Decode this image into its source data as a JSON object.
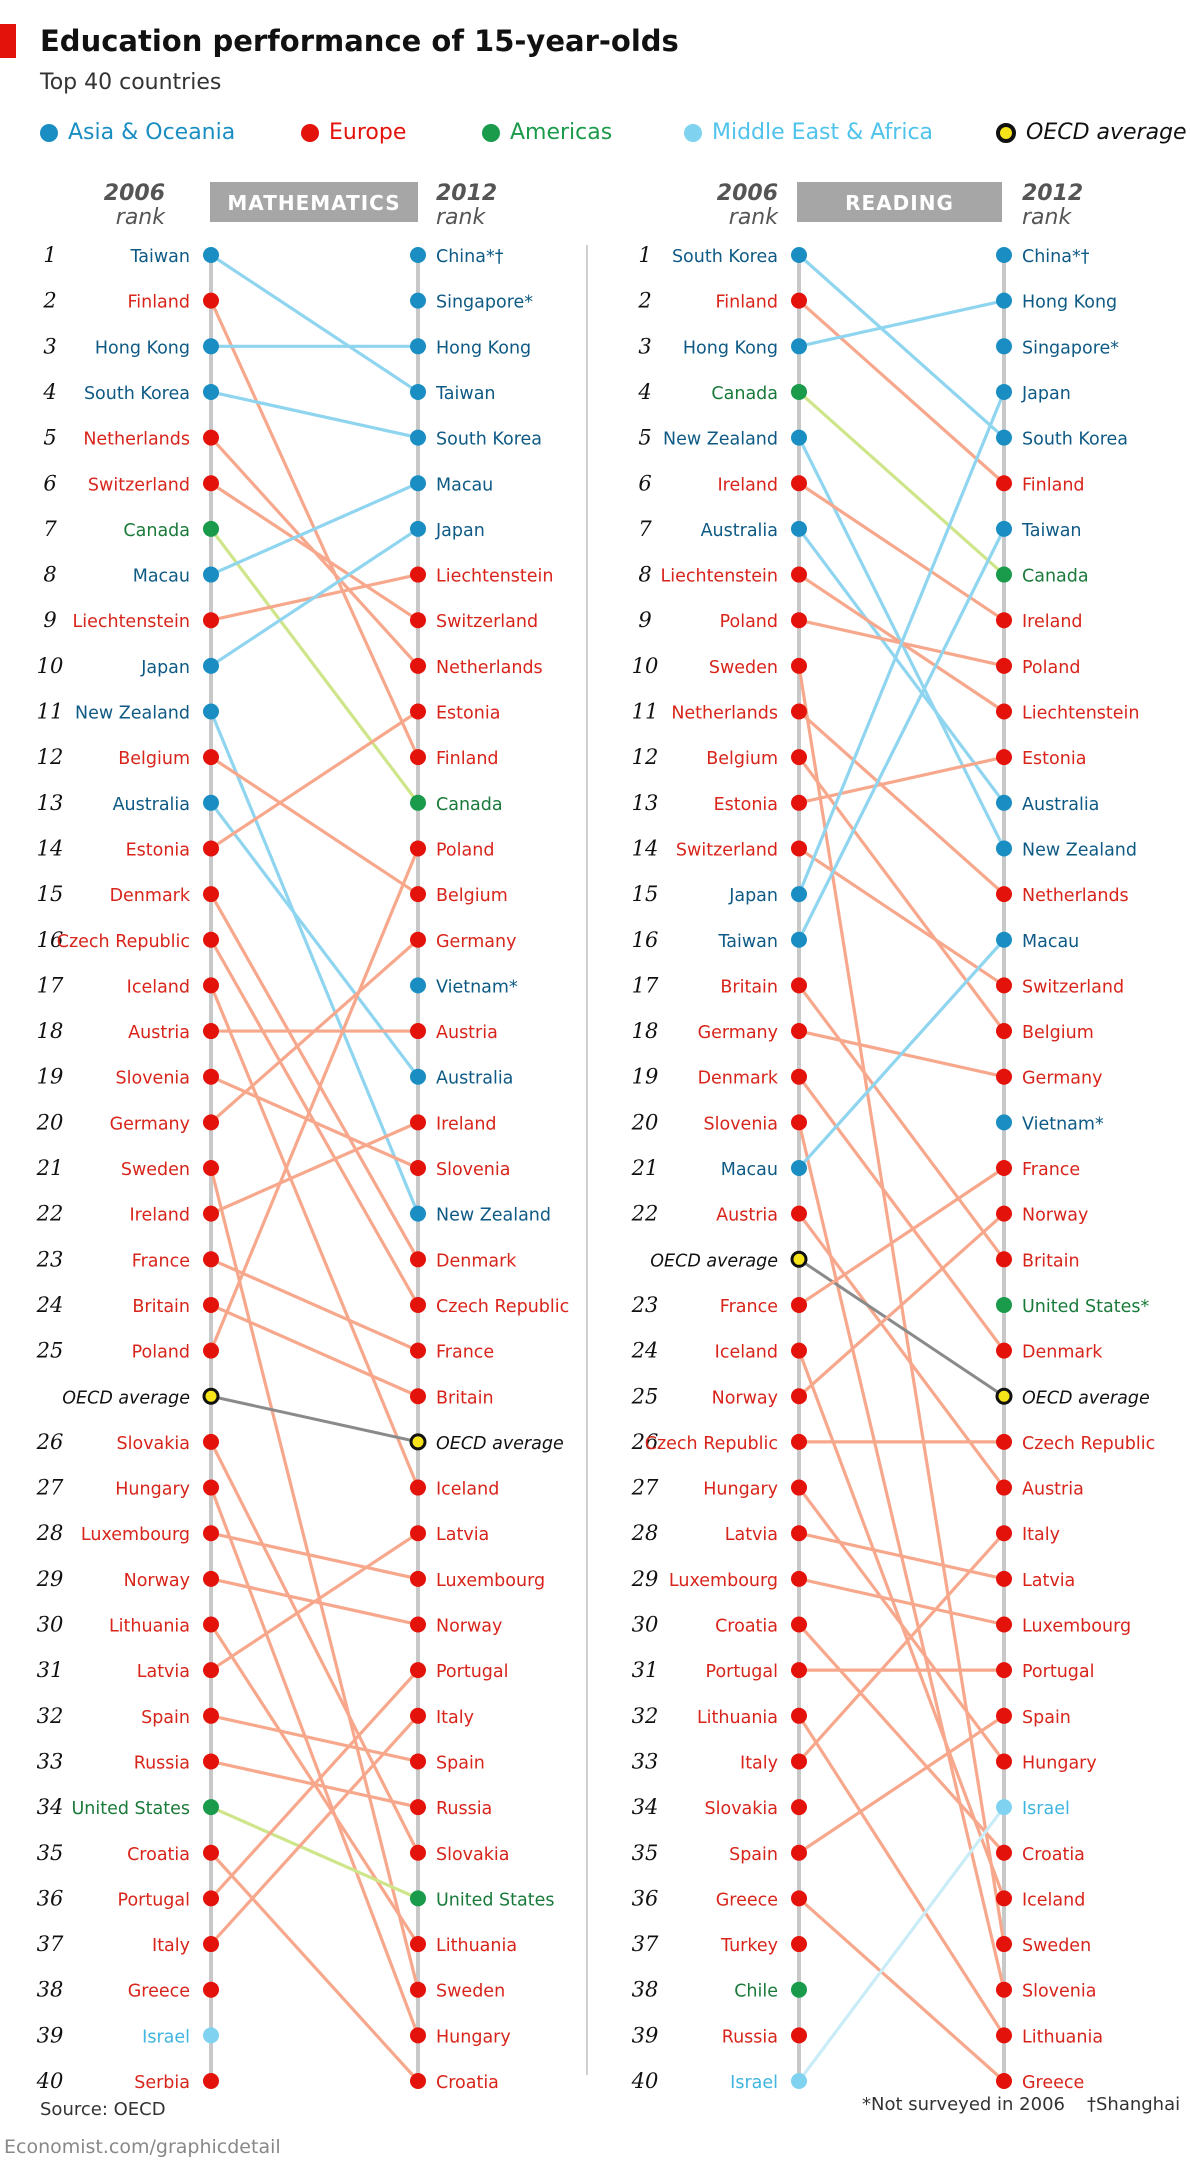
{
  "title": "Education performance of 15-year-olds",
  "subtitle": "Top 40 countries",
  "source": "Source: OECD",
  "footnote_star": "*Not surveyed in 2006",
  "footnote_dagger": "†Shanghai",
  "url": "Economist.com/graphicdetail",
  "colors": {
    "asia": "#1a8ec2",
    "europe": "#e3120b",
    "americas": "#1a9a4b",
    "mea": "#7fd3f0",
    "oecd_fill": "#f7e31a",
    "axis": "#c8c8c8",
    "header_bg": "#a6a6a6"
  },
  "legend": [
    {
      "key": "asia",
      "label": "Asia & Oceania"
    },
    {
      "key": "europe",
      "label": "Europe"
    },
    {
      "key": "americas",
      "label": "Americas"
    },
    {
      "key": "mea",
      "label": "Middle East & Africa"
    },
    {
      "key": "oecd",
      "label": "OECD average"
    }
  ],
  "chart_data": [
    {
      "type": "slope",
      "title": "MATHEMATICS",
      "left_header": [
        "2006",
        "rank"
      ],
      "right_header": [
        "2012",
        "rank"
      ],
      "left": [
        [
          "1",
          "Taiwan",
          "asia"
        ],
        [
          "2",
          "Finland",
          "europe"
        ],
        [
          "3",
          "Hong Kong",
          "asia"
        ],
        [
          "4",
          "South Korea",
          "asia"
        ],
        [
          "5",
          "Netherlands",
          "europe"
        ],
        [
          "6",
          "Switzerland",
          "europe"
        ],
        [
          "7",
          "Canada",
          "americas"
        ],
        [
          "8",
          "Macau",
          "asia"
        ],
        [
          "9",
          "Liechtenstein",
          "europe"
        ],
        [
          "10",
          "Japan",
          "asia"
        ],
        [
          "11",
          "New Zealand",
          "asia"
        ],
        [
          "12",
          "Belgium",
          "europe"
        ],
        [
          "13",
          "Australia",
          "asia"
        ],
        [
          "14",
          "Estonia",
          "europe"
        ],
        [
          "15",
          "Denmark",
          "europe"
        ],
        [
          "16",
          "Czech Republic",
          "europe"
        ],
        [
          "17",
          "Iceland",
          "europe"
        ],
        [
          "18",
          "Austria",
          "europe"
        ],
        [
          "19",
          "Slovenia",
          "europe"
        ],
        [
          "20",
          "Germany",
          "europe"
        ],
        [
          "21",
          "Sweden",
          "europe"
        ],
        [
          "22",
          "Ireland",
          "europe"
        ],
        [
          "23",
          "France",
          "europe"
        ],
        [
          "24",
          "Britain",
          "europe"
        ],
        [
          "25",
          "Poland",
          "europe"
        ],
        [
          "",
          "OECD average",
          "oecd"
        ],
        [
          "26",
          "Slovakia",
          "europe"
        ],
        [
          "27",
          "Hungary",
          "europe"
        ],
        [
          "28",
          "Luxembourg",
          "europe"
        ],
        [
          "29",
          "Norway",
          "europe"
        ],
        [
          "30",
          "Lithuania",
          "europe"
        ],
        [
          "31",
          "Latvia",
          "europe"
        ],
        [
          "32",
          "Spain",
          "europe"
        ],
        [
          "33",
          "Russia",
          "europe"
        ],
        [
          "34",
          "United States",
          "americas"
        ],
        [
          "35",
          "Croatia",
          "europe"
        ],
        [
          "36",
          "Portugal",
          "europe"
        ],
        [
          "37",
          "Italy",
          "europe"
        ],
        [
          "38",
          "Greece",
          "europe"
        ],
        [
          "39",
          "Israel",
          "mea"
        ],
        [
          "40",
          "Serbia",
          "europe"
        ]
      ],
      "right": [
        [
          "China*†",
          "asia"
        ],
        [
          "Singapore*",
          "asia"
        ],
        [
          "Hong Kong",
          "asia"
        ],
        [
          "Taiwan",
          "asia"
        ],
        [
          "South Korea",
          "asia"
        ],
        [
          "Macau",
          "asia"
        ],
        [
          "Japan",
          "asia"
        ],
        [
          "Liechtenstein",
          "europe"
        ],
        [
          "Switzerland",
          "europe"
        ],
        [
          "Netherlands",
          "europe"
        ],
        [
          "Estonia",
          "europe"
        ],
        [
          "Finland",
          "europe"
        ],
        [
          "Canada",
          "americas"
        ],
        [
          "Poland",
          "europe"
        ],
        [
          "Belgium",
          "europe"
        ],
        [
          "Germany",
          "europe"
        ],
        [
          "Vietnam*",
          "asia"
        ],
        [
          "Austria",
          "europe"
        ],
        [
          "Australia",
          "asia"
        ],
        [
          "Ireland",
          "europe"
        ],
        [
          "Slovenia",
          "europe"
        ],
        [
          "New Zealand",
          "asia"
        ],
        [
          "Denmark",
          "europe"
        ],
        [
          "Czech Republic",
          "europe"
        ],
        [
          "France",
          "europe"
        ],
        [
          "Britain",
          "europe"
        ],
        [
          "OECD average",
          "oecd"
        ],
        [
          "Iceland",
          "europe"
        ],
        [
          "Latvia",
          "europe"
        ],
        [
          "Luxembourg",
          "europe"
        ],
        [
          "Norway",
          "europe"
        ],
        [
          "Portugal",
          "europe"
        ],
        [
          "Italy",
          "europe"
        ],
        [
          "Spain",
          "europe"
        ],
        [
          "Russia",
          "europe"
        ],
        [
          "Slovakia",
          "europe"
        ],
        [
          "United States",
          "americas"
        ],
        [
          "Lithuania",
          "europe"
        ],
        [
          "Sweden",
          "europe"
        ],
        [
          "Hungary",
          "europe"
        ],
        [
          "Croatia",
          "europe"
        ]
      ]
    },
    {
      "type": "slope",
      "title": "READING",
      "left_header": [
        "2006",
        "rank"
      ],
      "right_header": [
        "2012",
        "rank"
      ],
      "left": [
        [
          "1",
          "South Korea",
          "asia"
        ],
        [
          "2",
          "Finland",
          "europe"
        ],
        [
          "3",
          "Hong Kong",
          "asia"
        ],
        [
          "4",
          "Canada",
          "americas"
        ],
        [
          "5",
          "New Zealand",
          "asia"
        ],
        [
          "6",
          "Ireland",
          "europe"
        ],
        [
          "7",
          "Australia",
          "asia"
        ],
        [
          "8",
          "Liechtenstein",
          "europe"
        ],
        [
          "9",
          "Poland",
          "europe"
        ],
        [
          "10",
          "Sweden",
          "europe"
        ],
        [
          "11",
          "Netherlands",
          "europe"
        ],
        [
          "12",
          "Belgium",
          "europe"
        ],
        [
          "13",
          "Estonia",
          "europe"
        ],
        [
          "14",
          "Switzerland",
          "europe"
        ],
        [
          "15",
          "Japan",
          "asia"
        ],
        [
          "16",
          "Taiwan",
          "asia"
        ],
        [
          "17",
          "Britain",
          "europe"
        ],
        [
          "18",
          "Germany",
          "europe"
        ],
        [
          "19",
          "Denmark",
          "europe"
        ],
        [
          "20",
          "Slovenia",
          "europe"
        ],
        [
          "21",
          "Macau",
          "asia"
        ],
        [
          "22",
          "Austria",
          "europe"
        ],
        [
          "",
          "OECD average",
          "oecd"
        ],
        [
          "23",
          "France",
          "europe"
        ],
        [
          "24",
          "Iceland",
          "europe"
        ],
        [
          "25",
          "Norway",
          "europe"
        ],
        [
          "26",
          "Czech Republic",
          "europe"
        ],
        [
          "27",
          "Hungary",
          "europe"
        ],
        [
          "28",
          "Latvia",
          "europe"
        ],
        [
          "29",
          "Luxembourg",
          "europe"
        ],
        [
          "30",
          "Croatia",
          "europe"
        ],
        [
          "31",
          "Portugal",
          "europe"
        ],
        [
          "32",
          "Lithuania",
          "europe"
        ],
        [
          "33",
          "Italy",
          "europe"
        ],
        [
          "34",
          "Slovakia",
          "europe"
        ],
        [
          "35",
          "Spain",
          "europe"
        ],
        [
          "36",
          "Greece",
          "europe"
        ],
        [
          "37",
          "Turkey",
          "europe"
        ],
        [
          "38",
          "Chile",
          "americas"
        ],
        [
          "39",
          "Russia",
          "europe"
        ],
        [
          "40",
          "Israel",
          "mea"
        ]
      ],
      "right": [
        [
          "China*†",
          "asia"
        ],
        [
          "Hong Kong",
          "asia"
        ],
        [
          "Singapore*",
          "asia"
        ],
        [
          "Japan",
          "asia"
        ],
        [
          "South Korea",
          "asia"
        ],
        [
          "Finland",
          "europe"
        ],
        [
          "Taiwan",
          "asia"
        ],
        [
          "Canada",
          "americas"
        ],
        [
          "Ireland",
          "europe"
        ],
        [
          "Poland",
          "europe"
        ],
        [
          "Liechtenstein",
          "europe"
        ],
        [
          "Estonia",
          "europe"
        ],
        [
          "Australia",
          "asia"
        ],
        [
          "New Zealand",
          "asia"
        ],
        [
          "Netherlands",
          "europe"
        ],
        [
          "Macau",
          "asia"
        ],
        [
          "Switzerland",
          "europe"
        ],
        [
          "Belgium",
          "europe"
        ],
        [
          "Germany",
          "europe"
        ],
        [
          "Vietnam*",
          "asia"
        ],
        [
          "France",
          "europe"
        ],
        [
          "Norway",
          "europe"
        ],
        [
          "Britain",
          "europe"
        ],
        [
          "United States*",
          "americas"
        ],
        [
          "Denmark",
          "europe"
        ],
        [
          "OECD average",
          "oecd"
        ],
        [
          "Czech Republic",
          "europe"
        ],
        [
          "Austria",
          "europe"
        ],
        [
          "Italy",
          "europe"
        ],
        [
          "Latvia",
          "europe"
        ],
        [
          "Luxembourg",
          "europe"
        ],
        [
          "Portugal",
          "europe"
        ],
        [
          "Spain",
          "europe"
        ],
        [
          "Hungary",
          "europe"
        ],
        [
          "Israel",
          "mea"
        ],
        [
          "Croatia",
          "europe"
        ],
        [
          "Iceland",
          "europe"
        ],
        [
          "Sweden",
          "europe"
        ],
        [
          "Slovenia",
          "europe"
        ],
        [
          "Lithuania",
          "europe"
        ],
        [
          "Greece",
          "europe"
        ]
      ]
    }
  ]
}
